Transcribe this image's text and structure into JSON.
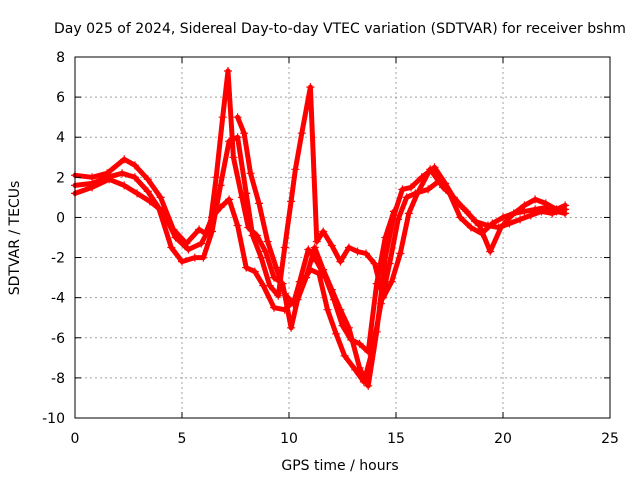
{
  "chart_data": {
    "type": "scatter",
    "title": "Day 025 of 2024, Sidereal Day-to-day VTEC variation (SDTVAR) for receiver bshm",
    "xlabel": "GPS time / hours",
    "ylabel": "SDTVAR / TECUs",
    "xlim": [
      0,
      25
    ],
    "ylim": [
      -10,
      8
    ],
    "xticks": [
      0,
      5,
      10,
      15,
      20,
      25
    ],
    "yticks": [
      -10,
      -8,
      -6,
      -4,
      -2,
      0,
      2,
      4,
      6,
      8
    ],
    "grid": true,
    "marker": "+",
    "color": "#ff0000",
    "series": [
      {
        "name": "track-1",
        "points": [
          [
            0.0,
            2.1
          ],
          [
            0.8,
            2.0
          ],
          [
            1.5,
            2.2
          ],
          [
            2.3,
            2.9
          ],
          [
            2.8,
            2.6
          ],
          [
            3.4,
            1.9
          ],
          [
            4.0,
            1.0
          ],
          [
            4.6,
            -0.6
          ],
          [
            5.2,
            -1.3
          ],
          [
            5.8,
            -0.6
          ],
          [
            6.1,
            -0.8
          ],
          [
            6.4,
            0.0
          ],
          [
            6.8,
            0.5
          ],
          [
            7.2,
            0.9
          ],
          [
            7.6,
            -0.4
          ],
          [
            8.0,
            -2.5
          ],
          [
            8.4,
            -2.7
          ],
          [
            8.8,
            -3.4
          ],
          [
            9.3,
            -4.5
          ],
          [
            9.8,
            -4.6
          ],
          [
            10.2,
            -4.2
          ],
          [
            10.6,
            -3.3
          ],
          [
            11.0,
            -2.6
          ],
          [
            11.4,
            -2.8
          ],
          [
            11.8,
            -4.6
          ],
          [
            12.2,
            -5.8
          ],
          [
            12.6,
            -6.9
          ],
          [
            13.1,
            -7.6
          ],
          [
            13.5,
            -8.2
          ],
          [
            13.9,
            -6.6
          ],
          [
            14.3,
            -4.3
          ],
          [
            14.7,
            -2.3
          ],
          [
            15.1,
            -0.1
          ],
          [
            15.5,
            1.0
          ],
          [
            15.9,
            1.2
          ],
          [
            16.5,
            1.4
          ],
          [
            17.0,
            1.8
          ],
          [
            17.5,
            1.2
          ],
          [
            18.0,
            0.0
          ],
          [
            18.5,
            -0.5
          ],
          [
            19.0,
            -0.8
          ],
          [
            19.5,
            -0.3
          ],
          [
            20.0,
            0.0
          ],
          [
            20.5,
            0.2
          ],
          [
            21.0,
            0.3
          ],
          [
            21.5,
            0.4
          ],
          [
            22.0,
            0.5
          ],
          [
            22.5,
            0.3
          ],
          [
            22.9,
            0.2
          ]
        ]
      },
      {
        "name": "track-2",
        "points": [
          [
            0.0,
            1.6
          ],
          [
            0.8,
            1.7
          ],
          [
            1.5,
            2.0
          ],
          [
            2.2,
            2.2
          ],
          [
            2.8,
            2.0
          ],
          [
            3.4,
            1.3
          ],
          [
            3.9,
            0.5
          ],
          [
            4.5,
            -1.5
          ],
          [
            5.0,
            -2.2
          ],
          [
            5.6,
            -2.0
          ],
          [
            6.0,
            -2.0
          ],
          [
            6.4,
            -0.7
          ],
          [
            6.8,
            1.6
          ],
          [
            7.2,
            3.8
          ],
          [
            7.6,
            4.0
          ],
          [
            8.0,
            1.2
          ],
          [
            8.3,
            -0.9
          ],
          [
            8.7,
            -2.0
          ],
          [
            9.1,
            -3.4
          ],
          [
            9.5,
            -3.9
          ],
          [
            9.8,
            -1.5
          ],
          [
            10.1,
            0.8
          ],
          [
            10.3,
            2.4
          ],
          [
            10.6,
            4.2
          ],
          [
            11.0,
            6.5
          ],
          [
            11.3,
            -1.2
          ],
          [
            11.6,
            -0.7
          ],
          [
            12.0,
            -1.4
          ],
          [
            12.4,
            -2.2
          ],
          [
            12.8,
            -1.5
          ],
          [
            13.2,
            -1.7
          ],
          [
            13.6,
            -1.8
          ],
          [
            14.0,
            -2.3
          ],
          [
            14.4,
            -4.0
          ],
          [
            14.8,
            -3.2
          ],
          [
            15.2,
            -1.8
          ],
          [
            15.6,
            0.2
          ],
          [
            16.0,
            1.2
          ],
          [
            16.6,
            2.4
          ],
          [
            17.2,
            1.5
          ],
          [
            17.7,
            1.0
          ],
          [
            18.2,
            0.4
          ],
          [
            18.7,
            -0.2
          ],
          [
            19.3,
            -0.4
          ],
          [
            19.8,
            -0.5
          ],
          [
            20.3,
            -0.3
          ],
          [
            20.8,
            -0.1
          ],
          [
            21.3,
            0.1
          ],
          [
            21.8,
            0.3
          ],
          [
            22.3,
            0.2
          ],
          [
            22.9,
            0.4
          ]
        ]
      },
      {
        "name": "track-3",
        "points": [
          [
            0.0,
            1.2
          ],
          [
            0.8,
            1.5
          ],
          [
            1.6,
            1.9
          ],
          [
            2.3,
            1.6
          ],
          [
            2.9,
            1.2
          ],
          [
            3.5,
            0.8
          ],
          [
            4.1,
            0.3
          ],
          [
            4.7,
            -1.0
          ],
          [
            5.3,
            -1.6
          ],
          [
            5.9,
            -1.3
          ],
          [
            6.3,
            -0.5
          ],
          [
            6.6,
            2.0
          ],
          [
            6.9,
            5.0
          ],
          [
            7.15,
            7.3
          ],
          [
            7.4,
            3.0
          ],
          [
            7.8,
            1.0
          ],
          [
            8.1,
            -0.5
          ],
          [
            8.5,
            -0.9
          ],
          [
            8.9,
            -1.7
          ],
          [
            9.3,
            -3.0
          ],
          [
            9.7,
            -3.3
          ],
          [
            10.1,
            -5.5
          ],
          [
            10.4,
            -4.1
          ],
          [
            10.8,
            -3.0
          ],
          [
            11.2,
            -1.5
          ],
          [
            11.6,
            -2.6
          ],
          [
            12.0,
            -3.6
          ],
          [
            12.4,
            -4.6
          ],
          [
            12.8,
            -5.5
          ],
          [
            13.3,
            -7.5
          ],
          [
            13.7,
            -8.4
          ],
          [
            14.1,
            -5.7
          ],
          [
            14.5,
            -2.0
          ],
          [
            14.9,
            0.1
          ],
          [
            15.3,
            1.4
          ],
          [
            15.7,
            1.5
          ],
          [
            16.2,
            2.0
          ],
          [
            16.8,
            2.5
          ],
          [
            17.3,
            1.7
          ],
          [
            17.8,
            0.8
          ],
          [
            18.3,
            0.3
          ],
          [
            18.9,
            -0.4
          ],
          [
            19.4,
            -1.7
          ],
          [
            19.9,
            -0.5
          ],
          [
            20.4,
            0.1
          ],
          [
            21.0,
            0.6
          ],
          [
            21.5,
            0.9
          ],
          [
            22.0,
            0.7
          ],
          [
            22.5,
            0.4
          ],
          [
            22.9,
            0.6
          ]
        ]
      },
      {
        "name": "track-4",
        "points": [
          [
            7.6,
            5.0
          ],
          [
            7.9,
            4.2
          ],
          [
            8.2,
            2.2
          ],
          [
            8.6,
            0.7
          ],
          [
            9.0,
            -1.2
          ],
          [
            9.4,
            -2.5
          ],
          [
            9.8,
            -3.8
          ],
          [
            10.2,
            -4.3
          ],
          [
            10.5,
            -3.2
          ],
          [
            10.9,
            -1.6
          ],
          [
            11.3,
            -2.2
          ],
          [
            11.7,
            -3.0
          ],
          [
            12.1,
            -4.1
          ],
          [
            12.5,
            -5.4
          ],
          [
            12.9,
            -6.1
          ],
          [
            13.3,
            -6.3
          ],
          [
            13.7,
            -6.7
          ],
          [
            14.1,
            -3.3
          ],
          [
            14.5,
            -1.0
          ],
          [
            14.9,
            0.3
          ]
        ]
      }
    ]
  }
}
